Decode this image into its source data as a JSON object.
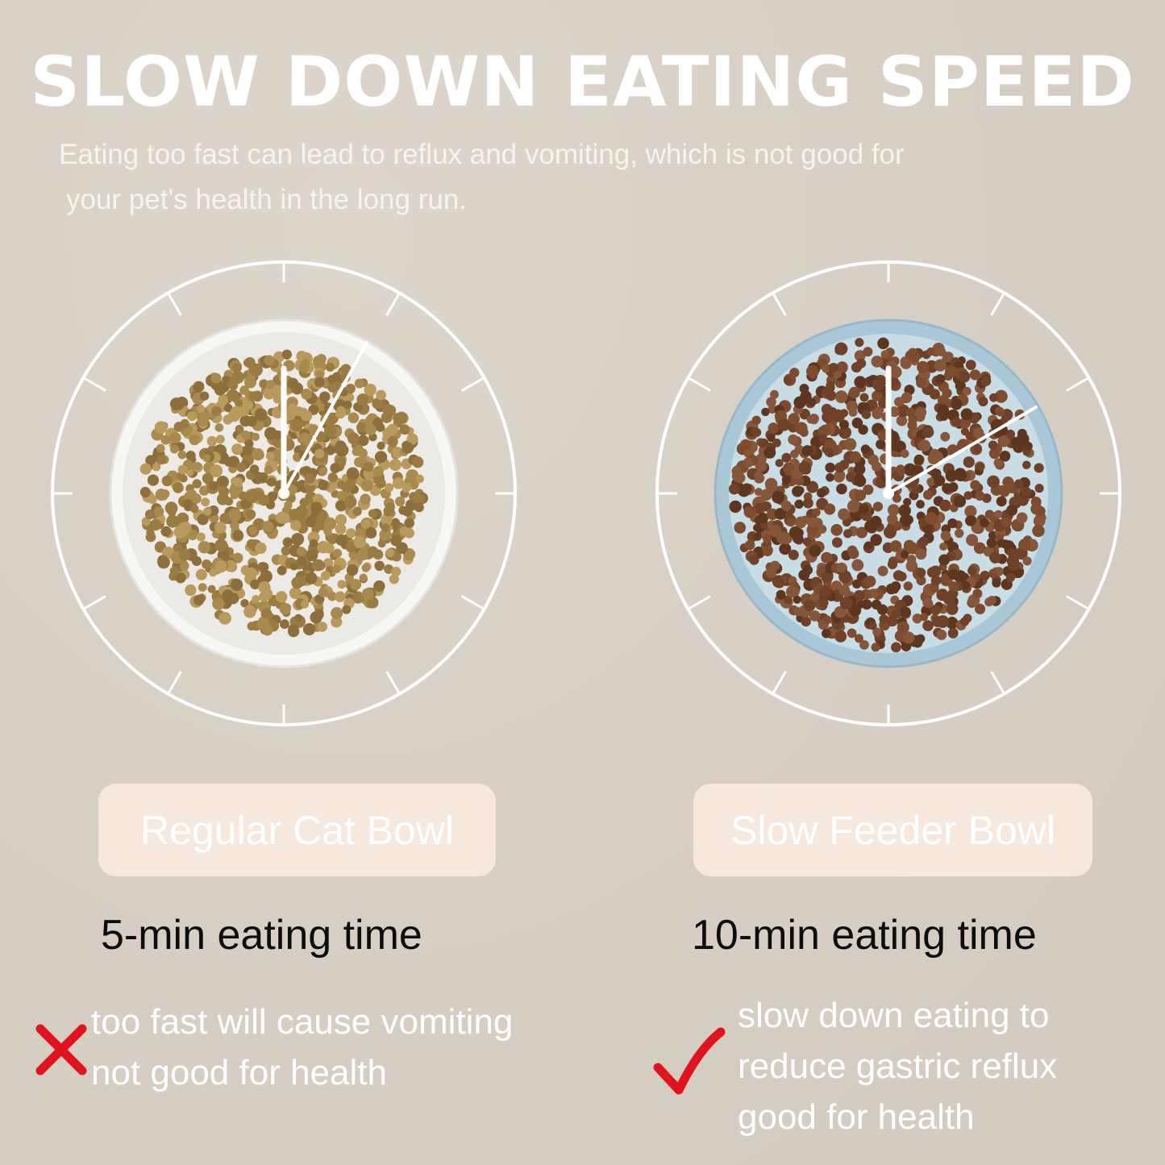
{
  "header": {
    "title": "SLOW DOWN EATING SPEED",
    "subtitle_line1": "Eating too fast can lead to reflux and vomiting, which is not good for",
    "subtitle_line2": "your pet's health in the long run."
  },
  "left": {
    "label": "Regular Cat Bowl",
    "eating_time": "5-min eating time",
    "points": [
      "too fast will cause vomiting",
      "not good for health"
    ],
    "icon": "cross-icon"
  },
  "right": {
    "label": "Slow Feeder Bowl",
    "eating_time": "10-min eating time",
    "points": [
      "slow down eating to",
      "reduce gastric reflux",
      "good for health"
    ],
    "icon": "check-icon"
  },
  "colors": {
    "background": "#d8d0c5",
    "label_box": "#f6e8dc",
    "mark_red": "#e0141e",
    "regular_kibble": "#a88a4f",
    "slow_kibble": "#6e4128",
    "slow_bowl_rim": "#a9c7d6"
  }
}
